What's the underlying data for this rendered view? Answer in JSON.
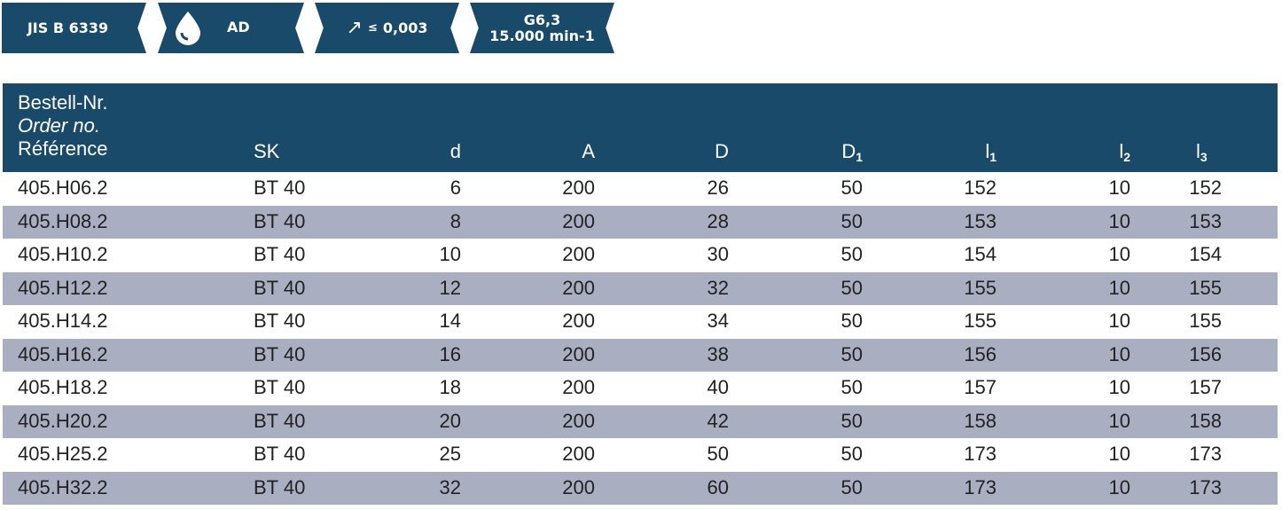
{
  "badges": {
    "standard": "JIS B 6339",
    "coolant": "AD",
    "runout": "0,003",
    "runout_symbol": "≤",
    "balance_grade": "G6,3",
    "max_speed": "15.000 min-1"
  },
  "table": {
    "ref_header": {
      "de": "Bestell-Nr.",
      "en": "Order no.",
      "fr": "Référence"
    },
    "columns": [
      "SK",
      "d",
      "A",
      "D",
      "D",
      "l",
      "l",
      "l"
    ],
    "subscripts": {
      "D1": "1",
      "l1": "1",
      "l2": "2",
      "l3": "3"
    },
    "rows": [
      [
        "405.H06.2",
        "BT 40",
        "6",
        "200",
        "26",
        "50",
        "152",
        "10",
        "152"
      ],
      [
        "405.H08.2",
        "BT 40",
        "8",
        "200",
        "28",
        "50",
        "153",
        "10",
        "153"
      ],
      [
        "405.H10.2",
        "BT 40",
        "10",
        "200",
        "30",
        "50",
        "154",
        "10",
        "154"
      ],
      [
        "405.H12.2",
        "BT 40",
        "12",
        "200",
        "32",
        "50",
        "155",
        "10",
        "155"
      ],
      [
        "405.H14.2",
        "BT 40",
        "14",
        "200",
        "34",
        "50",
        "155",
        "10",
        "155"
      ],
      [
        "405.H16.2",
        "BT 40",
        "16",
        "200",
        "38",
        "50",
        "156",
        "10",
        "156"
      ],
      [
        "405.H18.2",
        "BT 40",
        "18",
        "200",
        "40",
        "50",
        "157",
        "10",
        "157"
      ],
      [
        "405.H20.2",
        "BT 40",
        "20",
        "200",
        "42",
        "50",
        "158",
        "10",
        "158"
      ],
      [
        "405.H25.2",
        "BT 40",
        "25",
        "200",
        "50",
        "50",
        "173",
        "10",
        "173"
      ],
      [
        "405.H32.2",
        "BT 40",
        "32",
        "200",
        "60",
        "50",
        "173",
        "10",
        "173"
      ]
    ]
  },
  "colors": {
    "header_bg": "#1a4a6a",
    "alt_row_bg": "#a9afc1"
  }
}
